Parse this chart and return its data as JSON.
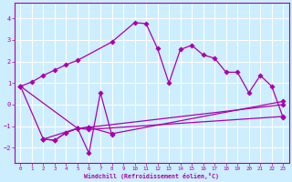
{
  "xlabel": "Windchill (Refroidissement éolien,°C)",
  "bg_color": "#cceeff",
  "line_color": "#aa00aa",
  "grid_color": "#ffffff",
  "xlim": [
    -0.5,
    23.5
  ],
  "ylim": [
    -2.7,
    4.7
  ],
  "xticks": [
    0,
    1,
    2,
    3,
    4,
    5,
    6,
    7,
    8,
    9,
    10,
    11,
    12,
    13,
    14,
    15,
    16,
    17,
    18,
    19,
    20,
    21,
    22,
    23
  ],
  "yticks": [
    -2,
    -1,
    0,
    1,
    2,
    3,
    4
  ],
  "line1_x": [
    0,
    1,
    2,
    3,
    4,
    5,
    8,
    10,
    11,
    12,
    13,
    14,
    15,
    16,
    17,
    18,
    19,
    20,
    21,
    22,
    23
  ],
  "line1_y": [
    0.85,
    1.05,
    1.35,
    1.6,
    1.85,
    2.05,
    2.9,
    3.8,
    3.75,
    2.6,
    1.0,
    2.55,
    2.75,
    2.3,
    2.15,
    1.5,
    1.5,
    0.55,
    1.35,
    0.85,
    -0.6
  ],
  "line2_x": [
    0,
    2,
    3,
    4,
    5,
    6,
    7,
    8
  ],
  "line2_y": [
    0.85,
    -1.6,
    -1.65,
    -1.3,
    -1.1,
    -2.25,
    0.55,
    -1.4
  ],
  "line3_x": [
    2,
    3,
    4,
    5,
    6,
    23
  ],
  "line3_y": [
    -1.6,
    -1.65,
    -1.3,
    -1.1,
    -1.15,
    -0.55
  ],
  "line4_x": [
    2,
    5,
    6,
    23
  ],
  "line4_y": [
    -1.6,
    -1.1,
    -1.05,
    0.0
  ],
  "line5_x": [
    0,
    5,
    6,
    8,
    23
  ],
  "line5_y": [
    0.85,
    -1.1,
    -1.05,
    -1.35,
    0.15
  ]
}
